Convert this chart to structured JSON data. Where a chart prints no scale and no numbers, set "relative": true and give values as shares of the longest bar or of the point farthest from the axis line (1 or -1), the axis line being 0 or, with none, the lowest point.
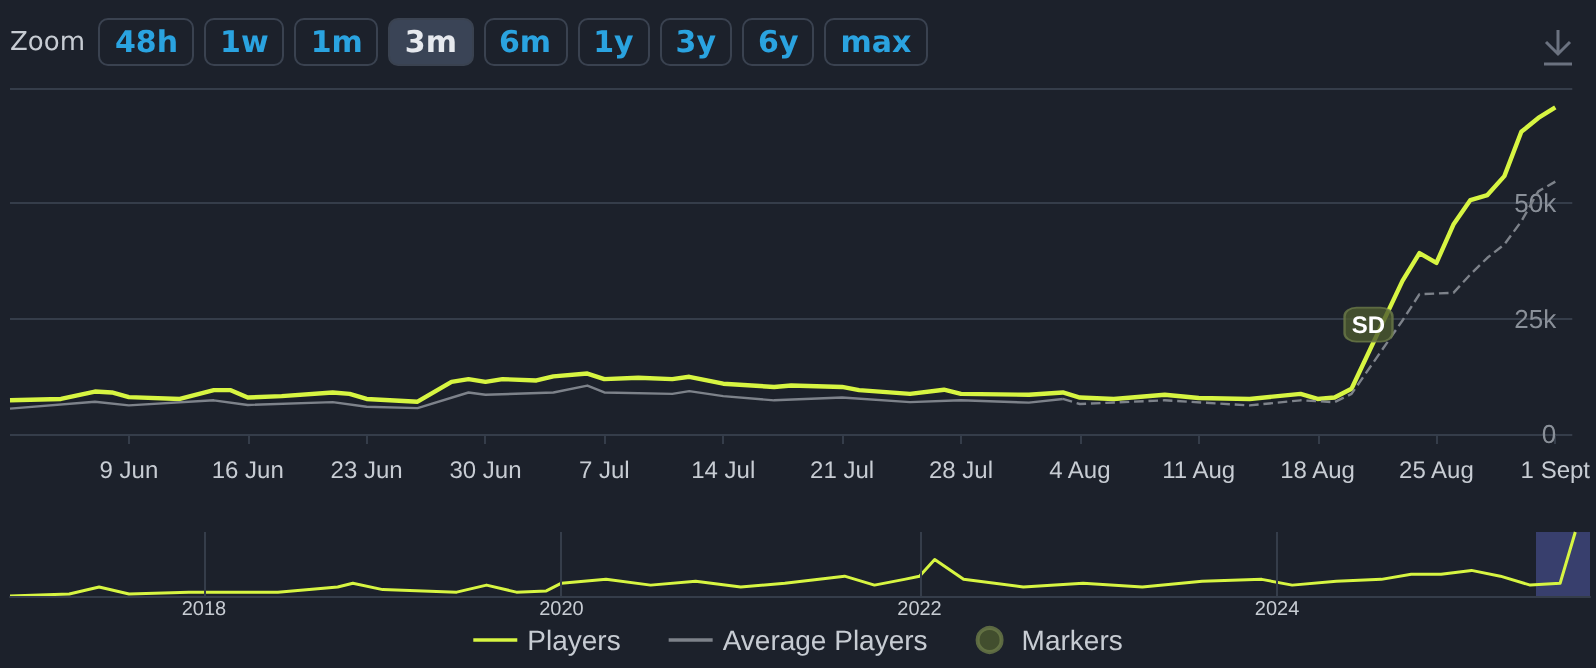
{
  "chart_data": [
    {
      "type": "line",
      "annotations": [
        "Zoom",
        "48h",
        "1w",
        "1m",
        "3m",
        "6m",
        "1y",
        "3y",
        "6y",
        "max",
        {
          "text": "SD",
          "x": "--08-21",
          "y": 23700
        }
      ],
      "xlim": [
        "--06-02",
        "--09-02"
      ],
      "xticks": [
        {
          "value": "--06-09",
          "label": "9 Jun"
        },
        {
          "value": "--06-16",
          "label": "16 Jun"
        },
        {
          "value": "--06-23",
          "label": "23 Jun"
        },
        {
          "value": "--06-30",
          "label": "30 Jun"
        },
        {
          "value": "--07-07",
          "label": "7 Jul"
        },
        {
          "value": "--07-14",
          "label": "14 Jul"
        },
        {
          "value": "--07-21",
          "label": "21 Jul"
        },
        {
          "value": "--07-28",
          "label": "28 Jul"
        },
        {
          "value": "--08-04",
          "label": "4 Aug"
        },
        {
          "value": "--08-11",
          "label": "11 Aug"
        },
        {
          "value": "--08-18",
          "label": "18 Aug"
        },
        {
          "value": "--08-25",
          "label": "25 Aug"
        },
        {
          "value": "--09-01",
          "label": "1 Sept"
        }
      ],
      "ylim": [
        0,
        75000
      ],
      "yticks": [
        0,
        {
          "value": 25000,
          "label": "25k"
        },
        {
          "value": 50000,
          "label": "50k"
        },
        {
          "value": 75000,
          "label": null
        }
      ],
      "grid": "y",
      "legend": "bottom",
      "series": [
        {
          "name": "Players",
          "color": "#d7f542",
          "x": [
            "--06-02",
            "--06-05",
            "--06-07",
            "--06-08",
            "--06-09",
            "--06-12",
            "--06-14",
            "--06-15",
            "--06-16",
            "--06-18",
            "--06-21",
            "--06-22",
            "--06-23",
            "--06-26",
            "--06-28",
            "--06-29",
            "--06-30",
            "--07-01",
            "--07-03",
            "--07-04",
            "--07-06",
            "--07-07",
            "--07-09",
            "--07-11",
            "--07-12",
            "--07-14",
            "--07-17",
            "--07-18",
            "--07-21",
            "--07-22",
            "--07-25",
            "--07-27",
            "--07-28",
            "--08-01",
            "--08-03",
            "--08-04",
            "--08-06",
            "--08-09",
            "--08-11",
            "--08-14",
            "--08-17",
            "--08-18",
            "--08-19",
            "--08-20",
            "--08-23",
            "--08-24",
            "--08-25",
            "--08-26",
            "--08-27",
            "--08-28",
            "--08-29",
            "--08-30",
            "--08-31",
            "--09-01"
          ],
          "values": [
            7300,
            7600,
            9200,
            9000,
            8000,
            7600,
            9500,
            9500,
            7900,
            8200,
            9000,
            8700,
            7600,
            7000,
            11300,
            11900,
            11300,
            11900,
            11600,
            12500,
            13100,
            11900,
            12200,
            11900,
            12400,
            10900,
            10200,
            10500,
            10200,
            9500,
            8700,
            9600,
            8700,
            8500,
            9000,
            7900,
            7600,
            8500,
            7800,
            7600,
            8700,
            7600,
            7900,
            9800,
            33200,
            39200,
            37100,
            45400,
            50700,
            51800,
            55900,
            65500,
            68500,
            70800
          ]
        },
        {
          "name": "Average Players",
          "color": "#7d828a",
          "x": [
            "--06-02",
            "--06-07",
            "--06-09",
            "--06-14",
            "--06-16",
            "--06-21",
            "--06-23",
            "--06-26",
            "--06-29",
            "--06-30",
            "--07-04",
            "--07-06",
            "--07-07",
            "--07-11",
            "--07-12",
            "--07-14",
            "--07-17",
            "--07-21",
            "--07-25",
            "--07-28",
            "--08-01",
            "--08-03"
          ],
          "values": [
            5500,
            7000,
            6200,
            7300,
            6300,
            6900,
            5900,
            5600,
            9000,
            8500,
            9000,
            10500,
            9000,
            8700,
            9300,
            8200,
            7300,
            7900,
            6900,
            7300,
            6800,
            7600
          ]
        },
        {
          "color": "#7d828a",
          "line_style": "dashed",
          "x": [
            "--08-03",
            "--08-04",
            "--08-09",
            "--08-14",
            "--08-17",
            "--08-19",
            "--08-20",
            "--08-23",
            "--08-24",
            "--08-26",
            "--08-27",
            "--08-28",
            "--08-29",
            "--08-30",
            "--08-31",
            "--09-01"
          ],
          "values": [
            7600,
            6500,
            7300,
            6200,
            7300,
            6900,
            8700,
            24600,
            30300,
            30600,
            34600,
            38200,
            41100,
            46100,
            52600,
            54700
          ]
        },
        {
          "name": "Markers",
          "type": "scatter",
          "color": "#4c5a30",
          "x": [
            "--08-21"
          ],
          "values": [
            23700
          ]
        }
      ]
    },
    {
      "type": "line",
      "relative": true,
      "xlim": [
        "2016-12",
        "2025-10"
      ],
      "xticks": [
        "2018",
        "2020",
        "2022",
        "2024"
      ],
      "grid": "x",
      "series": [
        {
          "color": "#d7f542",
          "x": [
            "2016-12",
            "2017-04",
            "2017-06",
            "2017-08",
            "2017-12",
            "2018-06",
            "2018-10",
            "2018-11",
            "2019-01",
            "2019-06",
            "2019-08",
            "2019-10",
            "2019-12",
            "2020-01",
            "2020-04",
            "2020-07",
            "2020-10",
            "2021-01",
            "2021-04",
            "2021-08",
            "2021-10",
            "2021-12",
            "2022-01",
            "2022-02",
            "2022-04",
            "2022-08",
            "2022-12",
            "2023-04",
            "2023-08",
            "2023-12",
            "2024-02",
            "2024-05",
            "2024-08",
            "2024-10",
            "2024-12",
            "2025-02",
            "2025-04",
            "2025-06",
            "2025-08",
            "2025-09"
          ],
          "values": [
            0,
            0.03,
            0.14,
            0.03,
            0.06,
            0.06,
            0.14,
            0.2,
            0.1,
            0.06,
            0.17,
            0.06,
            0.08,
            0.2,
            0.26,
            0.17,
            0.23,
            0.14,
            0.2,
            0.31,
            0.17,
            0.26,
            0.31,
            0.57,
            0.26,
            0.14,
            0.2,
            0.14,
            0.23,
            0.26,
            0.17,
            0.23,
            0.26,
            0.34,
            0.34,
            0.4,
            0.31,
            0.17,
            0.2,
            1
          ]
        }
      ]
    }
  ]
}
